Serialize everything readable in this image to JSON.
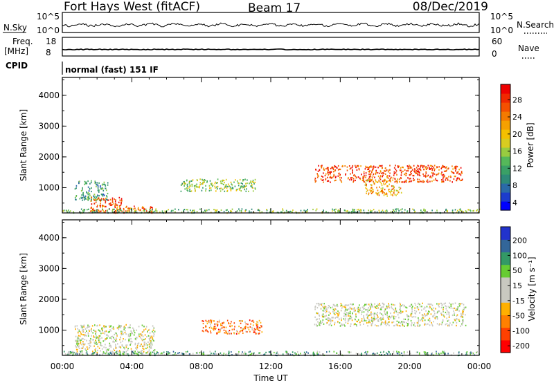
{
  "header": {
    "station": "Fort Hays West (fitACF)",
    "beam": "Beam 17",
    "date": "08/Dec/2019"
  },
  "noise_panel": {
    "left_label": "N.Sky",
    "right_label": "N.Search",
    "left_ticks": [
      "10^5",
      "10^0"
    ],
    "right_ticks": [
      "10^5",
      "10^0"
    ]
  },
  "freq_panel": {
    "left_label_1": "Freq.",
    "left_label_2": "[MHz]",
    "right_label": "Nave",
    "left_ticks": [
      "18",
      "8"
    ],
    "right_ticks": [
      "60",
      "0"
    ],
    "cpid_label": "CPID",
    "cpid_text": "normal (fast) 151 IF"
  },
  "chart_data": [
    {
      "type": "heatmap",
      "name": "power",
      "ylabel": "Slant Range [km]",
      "ylim": [
        180,
        4580
      ],
      "yticks": [
        "4000",
        "3000",
        "2000",
        "1000"
      ],
      "xticks": [
        "00:00",
        "04:00",
        "08:00",
        "12:00",
        "16:00",
        "20:00",
        "00:00"
      ],
      "xlim_hours": [
        0,
        24
      ],
      "colorbar": {
        "label": "Power [dB]",
        "ticks": [
          "28",
          "24",
          "20",
          "16",
          "12",
          "8",
          "4"
        ],
        "colors": [
          "#0000ff",
          "#1c3ccc",
          "#2a6aa8",
          "#2e8a78",
          "#3aa066",
          "#55b85a",
          "#98cc40",
          "#d8cc20",
          "#f5c000",
          "#f5a000",
          "#f47a00",
          "#f45000",
          "#f02800",
          "#ee0000"
        ]
      },
      "regions": [
        {
          "t0": 0.7,
          "t1": 2.6,
          "r0": 600,
          "r1": 1250,
          "level": 0.3
        },
        {
          "t0": 1.6,
          "t1": 3.4,
          "r0": 200,
          "r1": 720,
          "level": 0.85
        },
        {
          "t0": 3.0,
          "t1": 5.3,
          "r0": 200,
          "r1": 420,
          "level": 0.8
        },
        {
          "t0": 6.8,
          "t1": 11.2,
          "r0": 900,
          "r1": 1300,
          "level": 0.45
        },
        {
          "t0": 14.5,
          "t1": 23.0,
          "r0": 1200,
          "r1": 1750,
          "level": 0.85
        },
        {
          "t0": 17.4,
          "t1": 19.5,
          "r0": 750,
          "r1": 1300,
          "level": 0.65
        },
        {
          "t0": 0.0,
          "t1": 24.0,
          "r0": 200,
          "r1": 330,
          "level": 0.4
        }
      ]
    },
    {
      "type": "heatmap",
      "name": "velocity",
      "ylabel": "Slant Range [km]",
      "ylim": [
        180,
        4580
      ],
      "yticks": [
        "4000",
        "3000",
        "2000",
        "1000"
      ],
      "xticks": [
        "00:00",
        "04:00",
        "08:00",
        "12:00",
        "16:00",
        "20:00",
        "00:00"
      ],
      "xlabel": "Time UT",
      "xlim_hours": [
        0,
        24
      ],
      "colorbar": {
        "label": "Velocity [m s⁻¹]",
        "ticks": [
          "200",
          "100",
          "50",
          "15",
          "-15",
          "-50",
          "-100",
          "-200"
        ],
        "colors": [
          "#ff0000",
          "#ff4000",
          "#ff8000",
          "#ffb000",
          "#c8c8c0",
          "#c8c8c0",
          "#66cc33",
          "#339966",
          "#336699",
          "#2233cc"
        ]
      },
      "regions": [
        {
          "t0": 0.7,
          "t1": 5.3,
          "r0": 250,
          "r1": 1200,
          "level": 0.5
        },
        {
          "t0": 8.0,
          "t1": 11.5,
          "r0": 900,
          "r1": 1350,
          "level": 0.25
        },
        {
          "t0": 14.5,
          "t1": 23.2,
          "r0": 1150,
          "r1": 1900,
          "level": 0.5
        },
        {
          "t0": 0.0,
          "t1": 24.0,
          "r0": 200,
          "r1": 330,
          "level": 0.68
        }
      ]
    }
  ]
}
